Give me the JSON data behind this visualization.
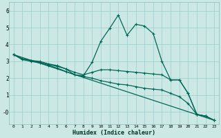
{
  "xlabel": "Humidex (Indice chaleur)",
  "bg_color": "#cce8e4",
  "grid_color": "#99cccc",
  "line_color": "#006655",
  "xlim": [
    -0.5,
    23.5
  ],
  "ylim": [
    -0.75,
    6.5
  ],
  "xticks": [
    0,
    1,
    2,
    3,
    4,
    5,
    6,
    7,
    8,
    9,
    10,
    11,
    12,
    13,
    14,
    15,
    16,
    17,
    18,
    19,
    20,
    21,
    22,
    23
  ],
  "yticks": [
    0,
    1,
    2,
    3,
    4,
    5,
    6
  ],
  "ytick_labels": [
    "-0",
    "1",
    "2",
    "3",
    "4",
    "5",
    "6"
  ],
  "line1_x": [
    0,
    1,
    2,
    3,
    4,
    5,
    6,
    7,
    8,
    9,
    10,
    11,
    12,
    13,
    14,
    15,
    16,
    17,
    18,
    19,
    20,
    21,
    22,
    23
  ],
  "line1_y": [
    3.4,
    3.15,
    3.05,
    3.0,
    2.85,
    2.75,
    2.55,
    2.2,
    2.15,
    2.95,
    4.2,
    4.95,
    5.75,
    4.55,
    5.2,
    5.1,
    4.65,
    3.0,
    1.9,
    1.9,
    1.1,
    -0.15,
    -0.25,
    -0.5
  ],
  "line2_x": [
    0,
    23
  ],
  "line2_y": [
    3.4,
    -0.5
  ],
  "line3_x": [
    0,
    1,
    2,
    3,
    4,
    5,
    6,
    7,
    8,
    9,
    10,
    11,
    12,
    13,
    14,
    15,
    16,
    17,
    18,
    19,
    20,
    21,
    22,
    23
  ],
  "line3_y": [
    3.4,
    3.15,
    3.05,
    2.95,
    2.8,
    2.7,
    2.55,
    2.35,
    2.2,
    2.35,
    2.5,
    2.5,
    2.45,
    2.4,
    2.35,
    2.3,
    2.25,
    2.2,
    1.9,
    1.9,
    1.1,
    -0.15,
    -0.25,
    -0.5
  ],
  "line4_x": [
    0,
    1,
    2,
    3,
    4,
    5,
    6,
    7,
    8,
    9,
    10,
    11,
    12,
    13,
    14,
    15,
    16,
    17,
    18,
    19,
    20,
    21,
    22,
    23
  ],
  "line4_y": [
    3.4,
    3.1,
    3.0,
    2.9,
    2.75,
    2.6,
    2.4,
    2.2,
    2.1,
    2.0,
    1.85,
    1.75,
    1.65,
    1.6,
    1.5,
    1.4,
    1.35,
    1.3,
    1.1,
    0.9,
    0.5,
    -0.15,
    -0.25,
    -0.5
  ]
}
